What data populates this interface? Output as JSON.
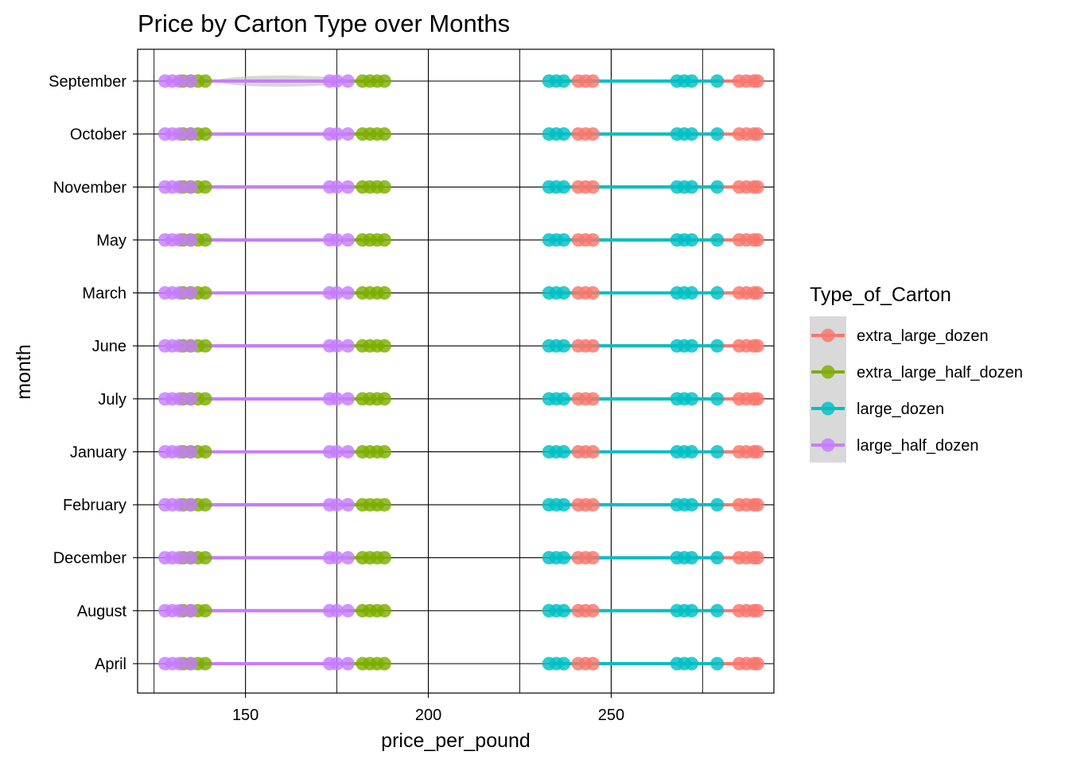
{
  "chart_data": {
    "type": "scatter",
    "title": "Price by Carton Type over Months",
    "xlabel": "price_per_pound",
    "ylabel": "month",
    "xlim": [
      120.5,
      294.5
    ],
    "x_ticks": [
      150,
      200,
      250
    ],
    "grid": true,
    "categories": [
      "April",
      "August",
      "December",
      "February",
      "January",
      "July",
      "June",
      "March",
      "May",
      "November",
      "October",
      "September"
    ],
    "legend": {
      "title": "Type_of_Carton",
      "position": "right"
    },
    "series": [
      {
        "name": "extra_large_dozen",
        "color": "#F8766D",
        "range": [
          241,
          290
        ],
        "points": [
          241,
          243,
          245,
          285,
          287,
          289,
          290
        ]
      },
      {
        "name": "extra_large_half_dozen",
        "color": "#7CAE00",
        "range": [
          133,
          188
        ],
        "points": [
          133,
          135,
          137,
          139,
          182,
          184,
          186,
          188
        ]
      },
      {
        "name": "large_dozen",
        "color": "#00BFC4",
        "range": [
          233,
          279
        ],
        "points": [
          233,
          235,
          237,
          268,
          270,
          272,
          279
        ]
      },
      {
        "name": "large_half_dozen",
        "color": "#C77CFF",
        "range": [
          128,
          178
        ],
        "points": [
          128,
          130,
          132,
          135,
          173,
          175,
          178
        ]
      }
    ],
    "annotations": [
      {
        "month": "September",
        "kind": "grey-ellipse",
        "x": [
          142,
          178
        ]
      }
    ]
  }
}
